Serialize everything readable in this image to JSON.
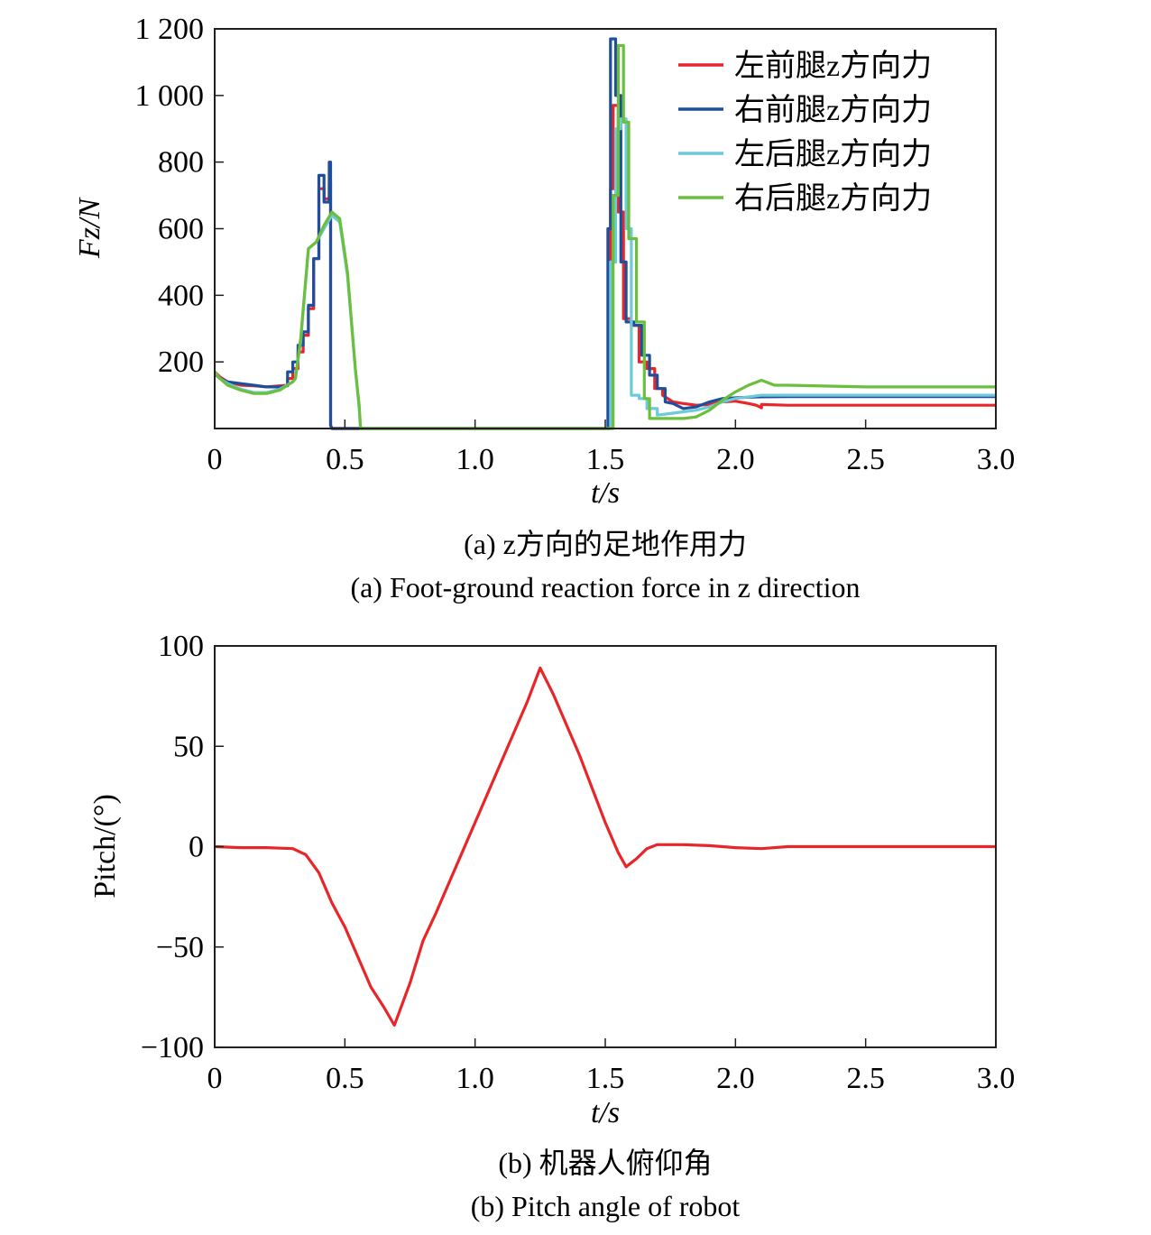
{
  "chart_data": [
    {
      "type": "line",
      "caption_cn": "(a) z方向的足地作用力",
      "caption_en": "(a) Foot-ground reaction force in z direction",
      "xlabel": "t/s",
      "ylabel": "Fz/N",
      "xlim": [
        0,
        3.0
      ],
      "ylim": [
        0,
        1200
      ],
      "xticks": [
        "0",
        "0.5",
        "1.0",
        "1.5",
        "2.0",
        "2.5",
        "3.0"
      ],
      "xtick_values": [
        0,
        0.5,
        1.0,
        1.5,
        2.0,
        2.5,
        3.0
      ],
      "yticks": [
        "200",
        "400",
        "600",
        "800",
        "1 000",
        "1 200"
      ],
      "ytick_values": [
        200,
        400,
        600,
        800,
        1000,
        1200
      ],
      "grid": false,
      "legend_position": "top-right",
      "series": [
        {
          "name": "左前腿z方向力",
          "color": "#e8262a",
          "x": [
            0,
            0.02,
            0.05,
            0.1,
            0.15,
            0.2,
            0.25,
            0.28,
            0.28,
            0.3,
            0.3,
            0.32,
            0.32,
            0.34,
            0.34,
            0.36,
            0.36,
            0.38,
            0.38,
            0.4,
            0.4,
            0.42,
            0.42,
            0.44,
            0.44,
            0.445,
            0.445,
            0.45,
            1.52,
            1.52,
            1.53,
            1.53,
            1.55,
            1.55,
            1.57,
            1.57,
            1.6,
            1.6,
            1.63,
            1.63,
            1.66,
            1.66,
            1.69,
            1.69,
            1.72,
            1.72,
            1.76,
            1.8,
            1.85,
            1.9,
            1.95,
            2.0,
            2.05,
            2.08,
            2.1,
            2.1,
            2.2,
            2.5,
            3.0
          ],
          "y": [
            170,
            155,
            140,
            130,
            128,
            125,
            128,
            130,
            150,
            150,
            180,
            180,
            230,
            230,
            280,
            280,
            360,
            360,
            510,
            510,
            720,
            720,
            690,
            690,
            740,
            740,
            10,
            0,
            0,
            720,
            720,
            970,
            970,
            650,
            650,
            330,
            330,
            310,
            310,
            200,
            200,
            180,
            180,
            120,
            120,
            100,
            80,
            75,
            70,
            72,
            80,
            82,
            75,
            70,
            62,
            72,
            70,
            70,
            70
          ]
        },
        {
          "name": "右前腿z方向力",
          "color": "#1f4e9d",
          "x": [
            0,
            0.02,
            0.05,
            0.1,
            0.15,
            0.2,
            0.25,
            0.28,
            0.28,
            0.3,
            0.3,
            0.32,
            0.32,
            0.34,
            0.34,
            0.36,
            0.36,
            0.38,
            0.38,
            0.4,
            0.4,
            0.42,
            0.42,
            0.44,
            0.44,
            0.445,
            0.445,
            0.45,
            1.51,
            1.51,
            1.52,
            1.52,
            1.54,
            1.54,
            1.56,
            1.56,
            1.58,
            1.58,
            1.61,
            1.61,
            1.64,
            1.64,
            1.67,
            1.67,
            1.7,
            1.7,
            1.73,
            1.73,
            1.76,
            1.8,
            1.85,
            1.9,
            1.95,
            2.0,
            2.05,
            2.1,
            2.2,
            2.5,
            3.0
          ],
          "y": [
            165,
            150,
            140,
            135,
            130,
            125,
            125,
            128,
            170,
            170,
            200,
            200,
            250,
            250,
            290,
            290,
            370,
            370,
            510,
            510,
            760,
            760,
            680,
            680,
            800,
            800,
            10,
            0,
            0,
            600,
            600,
            1170,
            1170,
            1000,
            1000,
            500,
            500,
            320,
            320,
            310,
            310,
            220,
            220,
            160,
            160,
            120,
            120,
            80,
            75,
            60,
            65,
            80,
            90,
            92,
            94,
            95,
            96,
            96,
            96
          ]
        },
        {
          "name": "左后腿z方向力",
          "color": "#6ec9d8",
          "x": [
            0,
            0.02,
            0.05,
            0.1,
            0.15,
            0.2,
            0.25,
            0.3,
            0.31,
            0.31,
            0.33,
            0.33,
            0.36,
            0.36,
            0.39,
            0.39,
            0.42,
            0.42,
            0.45,
            0.45,
            0.48,
            0.48,
            0.51,
            0.51,
            0.54,
            0.54,
            0.555,
            0.555,
            0.56,
            1.52,
            1.52,
            1.54,
            1.54,
            1.56,
            1.56,
            1.58,
            1.58,
            1.6,
            1.6,
            1.63,
            1.63,
            1.66,
            1.66,
            1.7,
            1.7,
            1.75,
            1.8,
            1.85,
            1.9,
            1.95,
            2.0,
            2.1,
            2.2,
            2.5,
            3.0
          ],
          "y": [
            170,
            150,
            135,
            118,
            108,
            108,
            118,
            140,
            150,
            150,
            260,
            260,
            540,
            540,
            560,
            560,
            600,
            600,
            640,
            640,
            620,
            620,
            460,
            460,
            180,
            180,
            60,
            60,
            0,
            0,
            500,
            500,
            900,
            900,
            930,
            930,
            600,
            600,
            100,
            100,
            90,
            90,
            60,
            60,
            40,
            45,
            50,
            55,
            65,
            80,
            90,
            100,
            100,
            100,
            100
          ]
        },
        {
          "name": "右后腿z方向力",
          "color": "#6abf3c",
          "x": [
            0,
            0.02,
            0.05,
            0.1,
            0.15,
            0.2,
            0.25,
            0.3,
            0.31,
            0.31,
            0.33,
            0.33,
            0.36,
            0.36,
            0.39,
            0.39,
            0.42,
            0.42,
            0.45,
            0.45,
            0.48,
            0.48,
            0.51,
            0.51,
            0.54,
            0.54,
            0.555,
            0.555,
            0.56,
            1.53,
            1.53,
            1.55,
            1.55,
            1.57,
            1.57,
            1.59,
            1.59,
            1.62,
            1.62,
            1.65,
            1.65,
            1.67,
            1.67,
            1.72,
            1.75,
            1.8,
            1.85,
            1.9,
            1.95,
            2.0,
            2.05,
            2.1,
            2.15,
            2.2,
            2.5,
            3.0
          ],
          "y": [
            170,
            150,
            130,
            115,
            105,
            105,
            115,
            140,
            150,
            150,
            270,
            270,
            540,
            540,
            560,
            560,
            610,
            610,
            650,
            650,
            630,
            630,
            470,
            470,
            180,
            180,
            70,
            70,
            0,
            0,
            700,
            700,
            1150,
            1150,
            920,
            920,
            570,
            570,
            320,
            320,
            90,
            90,
            30,
            30,
            30,
            30,
            35,
            55,
            85,
            110,
            130,
            145,
            130,
            130,
            125,
            125
          ]
        }
      ]
    },
    {
      "type": "line",
      "caption_cn": "(b) 机器人俯仰角",
      "caption_en": "(b) Pitch angle of robot",
      "xlabel": "t/s",
      "ylabel": "Pitch/(°)",
      "xlim": [
        0,
        3.0
      ],
      "ylim": [
        -100,
        100
      ],
      "xticks": [
        "0",
        "0.5",
        "1.0",
        "1.5",
        "2.0",
        "2.5",
        "3.0"
      ],
      "xtick_values": [
        0,
        0.5,
        1.0,
        1.5,
        2.0,
        2.5,
        3.0
      ],
      "yticks": [
        "−100",
        "−50",
        "0",
        "50",
        "100"
      ],
      "ytick_values": [
        -100,
        -50,
        0,
        50,
        100
      ],
      "grid": false,
      "series": [
        {
          "name": "",
          "color": "#e8262a",
          "x": [
            0,
            0.1,
            0.2,
            0.3,
            0.35,
            0.4,
            0.45,
            0.5,
            0.55,
            0.6,
            0.65,
            0.69,
            0.75,
            0.8,
            0.85,
            0.9,
            1.0,
            1.1,
            1.2,
            1.25,
            1.3,
            1.4,
            1.5,
            1.55,
            1.58,
            1.62,
            1.66,
            1.7,
            1.8,
            1.9,
            2.0,
            2.1,
            2.2,
            2.5,
            3.0
          ],
          "y": [
            0,
            -0.5,
            -0.5,
            -1,
            -4,
            -13,
            -28,
            -40,
            -55,
            -70,
            -80,
            -89,
            -68,
            -47,
            -33,
            -18,
            12,
            42,
            72,
            89,
            76,
            46,
            12,
            -3,
            -10,
            -6,
            -1,
            1,
            1,
            0.5,
            -0.5,
            -1,
            0,
            0,
            0
          ]
        }
      ]
    }
  ]
}
